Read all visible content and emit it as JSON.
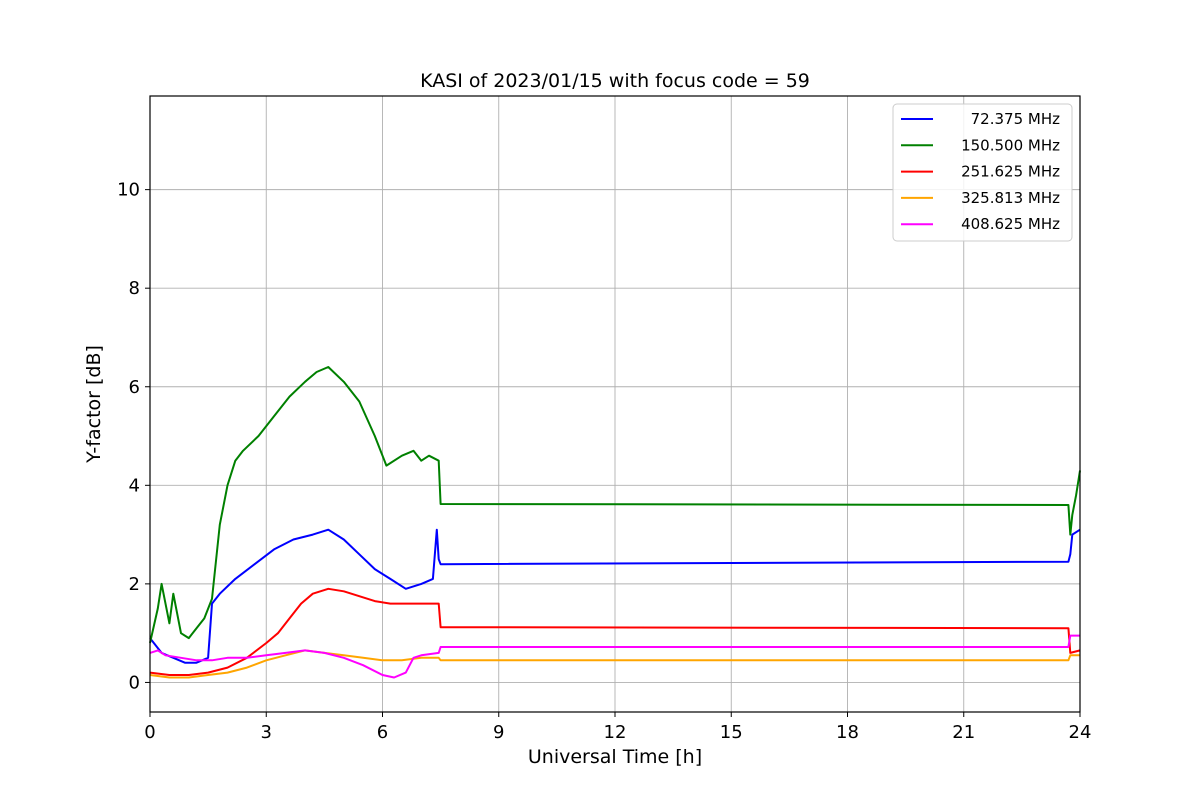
{
  "chart_data": {
    "type": "line",
    "title": "KASI of 2023/01/15 with focus code = 59",
    "xlabel": "Universal Time [h]",
    "ylabel": "Y-factor [dB]",
    "xlim": [
      0,
      24
    ],
    "ylim": [
      -0.6,
      11.9
    ],
    "xticks": [
      0,
      3,
      6,
      9,
      12,
      15,
      18,
      21,
      24
    ],
    "yticks": [
      0,
      2,
      4,
      6,
      8,
      10
    ],
    "grid": true,
    "legend_position": "top-right",
    "series": [
      {
        "name": "72.375 MHz",
        "color": "#0000ff",
        "x": [
          0,
          0.3,
          0.6,
          0.9,
          1.2,
          1.5,
          1.6,
          1.8,
          2.2,
          2.7,
          3.2,
          3.7,
          4.2,
          4.6,
          5.0,
          5.4,
          5.8,
          6.2,
          6.6,
          7.0,
          7.3,
          7.4,
          7.45,
          7.5,
          23.7,
          23.75,
          23.8,
          24
        ],
        "y": [
          0.9,
          0.6,
          0.5,
          0.4,
          0.4,
          0.5,
          1.6,
          1.8,
          2.1,
          2.4,
          2.7,
          2.9,
          3.0,
          3.1,
          2.9,
          2.6,
          2.3,
          2.1,
          1.9,
          2.0,
          2.1,
          3.1,
          2.5,
          2.4,
          2.45,
          2.6,
          3.0,
          3.1
        ]
      },
      {
        "name": "150.500 MHz",
        "color": "#008000",
        "x": [
          0,
          0.2,
          0.3,
          0.5,
          0.6,
          0.8,
          1.0,
          1.2,
          1.4,
          1.6,
          1.8,
          2.0,
          2.2,
          2.4,
          2.8,
          3.2,
          3.6,
          4.0,
          4.3,
          4.6,
          5.0,
          5.4,
          5.8,
          6.1,
          6.5,
          6.8,
          7.0,
          7.2,
          7.45,
          7.5,
          23.7,
          23.75,
          23.8,
          23.9,
          24
        ],
        "y": [
          0.8,
          1.5,
          2.0,
          1.2,
          1.8,
          1.0,
          0.9,
          1.1,
          1.3,
          1.7,
          3.2,
          4.0,
          4.5,
          4.7,
          5.0,
          5.4,
          5.8,
          6.1,
          6.3,
          6.4,
          6.1,
          5.7,
          5.0,
          4.4,
          4.6,
          4.7,
          4.5,
          4.6,
          4.5,
          3.62,
          3.6,
          3.0,
          3.4,
          3.8,
          4.3
        ]
      },
      {
        "name": "251.625 MHz",
        "color": "#ff0000",
        "x": [
          0,
          0.5,
          1.0,
          1.5,
          2.0,
          2.5,
          3.0,
          3.3,
          3.6,
          3.9,
          4.2,
          4.6,
          5.0,
          5.4,
          5.8,
          6.2,
          6.6,
          7.0,
          7.45,
          7.5,
          23.7,
          23.75,
          24
        ],
        "y": [
          0.2,
          0.15,
          0.15,
          0.2,
          0.3,
          0.5,
          0.8,
          1.0,
          1.3,
          1.6,
          1.8,
          1.9,
          1.85,
          1.75,
          1.65,
          1.6,
          1.6,
          1.6,
          1.6,
          1.12,
          1.1,
          0.6,
          0.65
        ]
      },
      {
        "name": "325.813 MHz",
        "color": "#ffa500",
        "x": [
          0,
          0.5,
          1.0,
          1.5,
          2.0,
          2.5,
          3.0,
          3.5,
          4.0,
          4.5,
          5.0,
          5.5,
          6.0,
          6.5,
          7.0,
          7.45,
          7.5,
          23.7,
          23.75,
          24
        ],
        "y": [
          0.15,
          0.1,
          0.1,
          0.15,
          0.2,
          0.3,
          0.45,
          0.55,
          0.65,
          0.6,
          0.55,
          0.5,
          0.45,
          0.45,
          0.5,
          0.5,
          0.45,
          0.45,
          0.55,
          0.55
        ]
      },
      {
        "name": "408.625 MHz",
        "color": "#ff00ff",
        "x": [
          0,
          0.2,
          0.4,
          0.8,
          1.2,
          1.6,
          2.0,
          2.5,
          3.0,
          3.5,
          4.0,
          4.5,
          5.0,
          5.5,
          6.0,
          6.3,
          6.6,
          6.8,
          7.0,
          7.45,
          7.5,
          23.7,
          23.75,
          24
        ],
        "y": [
          0.6,
          0.65,
          0.55,
          0.5,
          0.45,
          0.45,
          0.5,
          0.5,
          0.55,
          0.6,
          0.65,
          0.6,
          0.5,
          0.35,
          0.15,
          0.1,
          0.2,
          0.5,
          0.55,
          0.6,
          0.72,
          0.72,
          0.95,
          0.95
        ]
      }
    ]
  }
}
